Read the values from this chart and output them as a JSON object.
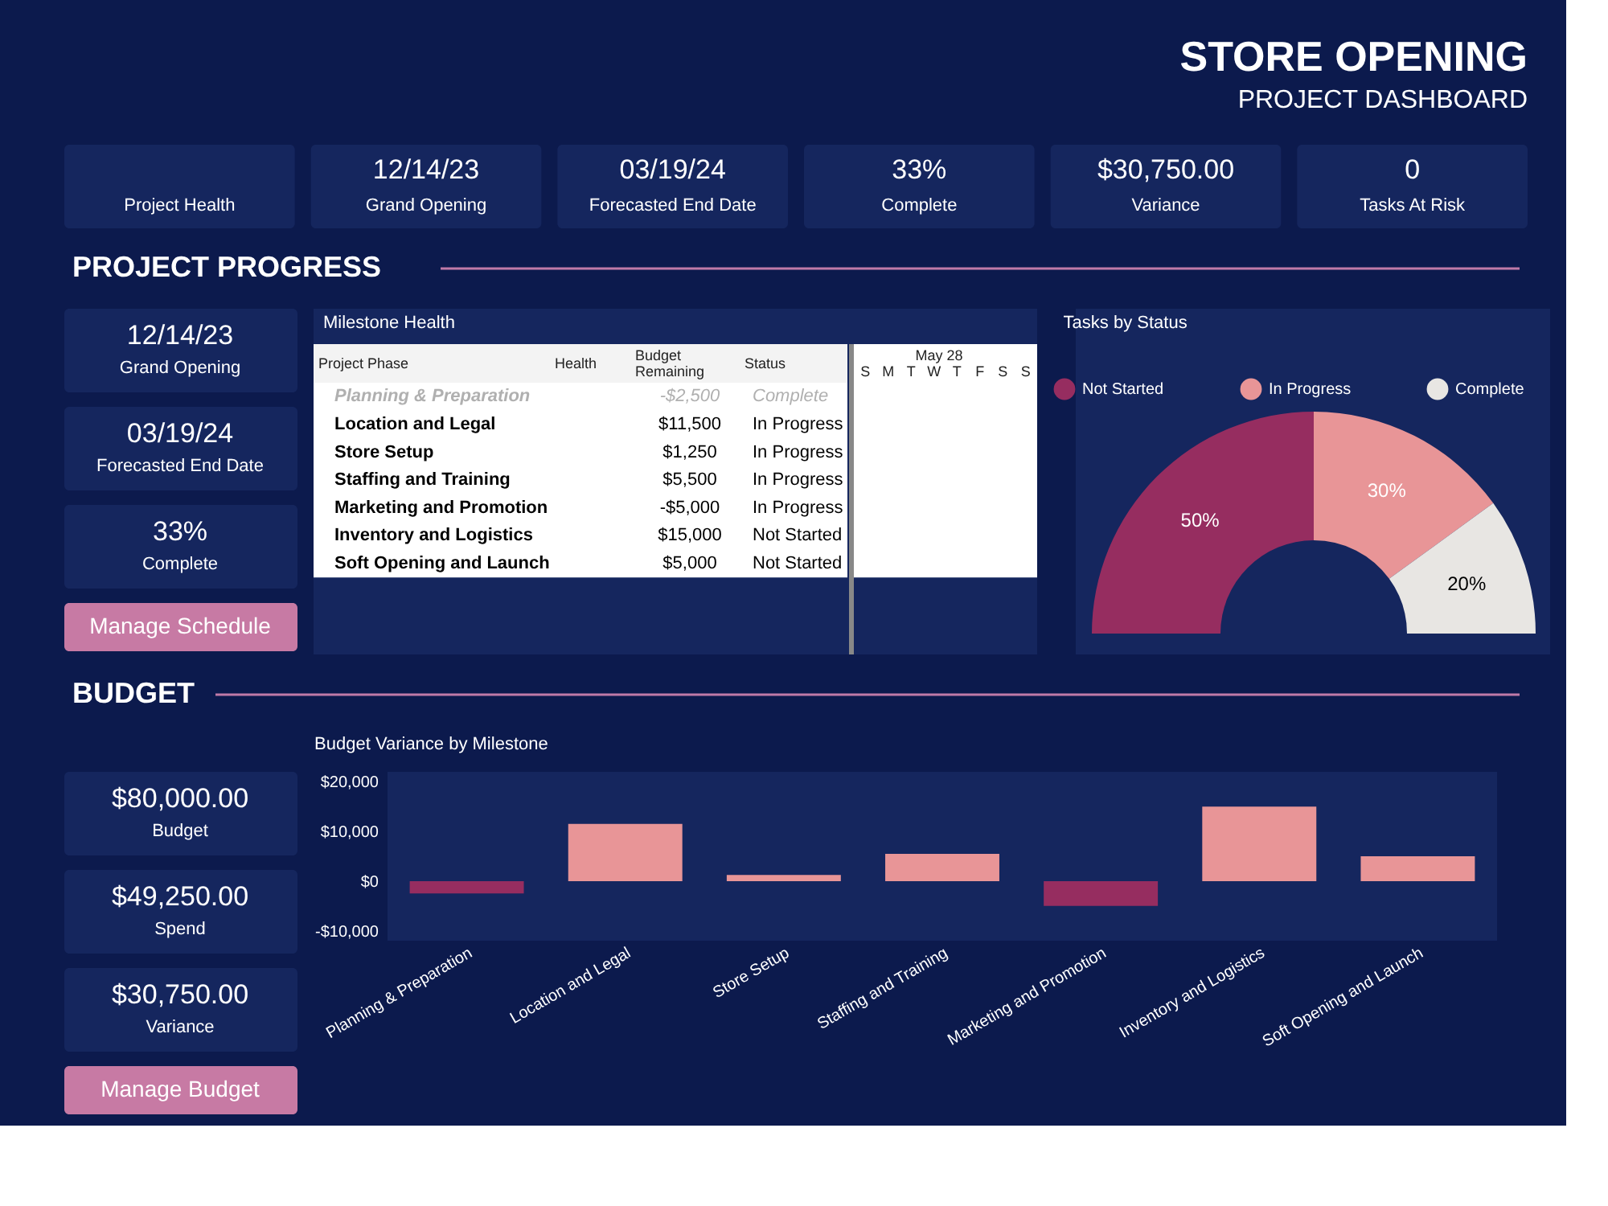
{
  "chart_data": [
    {
      "type": "other",
      "title": "STORE OPENING",
      "subtitle": "PROJECT DASHBOARD",
      "categories": [
        "Project Health",
        "Grand Opening",
        "Forecasted End Date",
        "Complete",
        "Variance",
        "Tasks At Risk"
      ],
      "value_labels": [
        null,
        "12/14/23",
        "03/19/24",
        "33%",
        "$30,750.00",
        "0"
      ]
    },
    {
      "type": "other",
      "title": "PROJECT PROGRESS",
      "categories": [
        "Grand Opening",
        "Forecasted End Date",
        "Complete"
      ],
      "value_labels": [
        "12/14/23",
        "03/19/24",
        "33%"
      ],
      "annotations": [
        "Manage Schedule"
      ]
    },
    {
      "type": "other",
      "title": "Milestone Health",
      "categories": [
        "Project Phase",
        "Health",
        "Budget Remaining",
        "Status"
      ],
      "y_categories": [
        "Planning & Preparation",
        "Location and Legal",
        "Store Setup",
        "Staffing and Training",
        "Marketing and Promotion",
        "Inventory and Logistics",
        "Soft Opening and Launch"
      ],
      "cell_labels": [
        [
          null,
          "-$2,500",
          "Complete"
        ],
        [
          null,
          "$11,500",
          "In Progress"
        ],
        [
          null,
          "$1,250",
          "In Progress"
        ],
        [
          null,
          "$5,500",
          "In Progress"
        ],
        [
          null,
          "-$5,000",
          "In Progress"
        ],
        [
          null,
          "$15,000",
          "Not Started"
        ],
        [
          null,
          "$5,000",
          "Not Started"
        ]
      ],
      "annotations": [
        "May 28",
        "S",
        "M",
        "T",
        "W",
        "T",
        "F",
        "S",
        "S"
      ]
    },
    {
      "type": "donut",
      "title": "Tasks by Status",
      "categories": [
        "Not Started",
        "In Progress",
        "Complete"
      ],
      "values": [
        50,
        30,
        20
      ],
      "colors": [
        "#962d60",
        "#e89597",
        "#e8e6e3"
      ],
      "value_labels": [
        "50%",
        "30%",
        "20%"
      ],
      "legend": "top"
    },
    {
      "type": "other",
      "title": "BUDGET",
      "categories": [
        "Budget",
        "Spend",
        "Variance"
      ],
      "value_labels": [
        "$80,000.00",
        "$49,250.00",
        "$30,750.00"
      ],
      "annotations": [
        "Manage Budget"
      ]
    },
    {
      "type": "bar",
      "title": "Budget Variance by Milestone",
      "categories": [
        "Planning & Preparation",
        "Location and Legal",
        "Store Setup",
        "Staffing and Training",
        "Marketing and Promotion",
        "Inventory and Logistics",
        "Soft Opening and Launch"
      ],
      "values": [
        -2500,
        11500,
        1250,
        5500,
        -5000,
        15000,
        5000
      ],
      "colors": [
        "#962d60",
        "#e89597",
        "#e89597",
        "#e89597",
        "#962d60",
        "#e89597",
        "#e89597"
      ],
      "ylim": [
        -12000,
        22000
      ],
      "yticks": [
        {
          "value": -10000,
          "label": "-$10,000"
        },
        {
          "value": 0,
          "label": "$0"
        },
        {
          "value": 10000,
          "label": "$10,000"
        },
        {
          "value": 20000,
          "label": "$20,000"
        }
      ],
      "grid": false
    }
  ]
}
